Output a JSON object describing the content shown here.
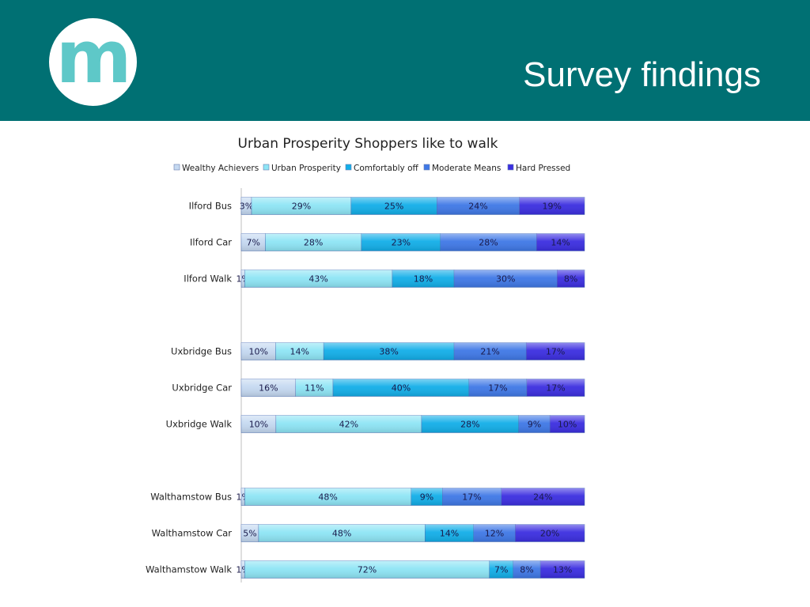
{
  "slide": {
    "title": "Survey findings",
    "logo_letter": "m",
    "header_color": "#007073",
    "logo_color": "#5ec8c8"
  },
  "chart_data": {
    "type": "bar",
    "orientation": "horizontal",
    "stacked": "percent",
    "title": "Urban Prosperity Shoppers like to walk",
    "legend_position": "top",
    "grid": false,
    "categories": [
      "Ilford Bus",
      "Ilford Car",
      "Ilford Walk",
      "",
      "Uxbridge Bus",
      "Uxbridge Car",
      "Uxbridge Walk",
      "",
      "Walthamstow Bus",
      "Walthamstow Car",
      "Walthamstow Walk"
    ],
    "series": [
      {
        "name": "Wealthy Achievers",
        "color": "#c5d9f1",
        "values": [
          3,
          7,
          1,
          null,
          10,
          16,
          10,
          null,
          1,
          5,
          1
        ]
      },
      {
        "name": "Urban Prosperity",
        "color": "#8ee5f5",
        "values": [
          29,
          28,
          43,
          null,
          14,
          11,
          42,
          null,
          48,
          48,
          72
        ]
      },
      {
        "name": "Comfortably off",
        "color": "#12aee8",
        "values": [
          25,
          23,
          18,
          null,
          38,
          40,
          28,
          null,
          9,
          14,
          7
        ]
      },
      {
        "name": "Moderate Means",
        "color": "#3f78e6",
        "values": [
          24,
          28,
          30,
          null,
          21,
          17,
          9,
          null,
          17,
          12,
          8
        ]
      },
      {
        "name": "Hard Pressed",
        "color": "#3b2ee0",
        "values": [
          19,
          14,
          8,
          null,
          17,
          17,
          10,
          null,
          24,
          20,
          13
        ]
      }
    ]
  }
}
